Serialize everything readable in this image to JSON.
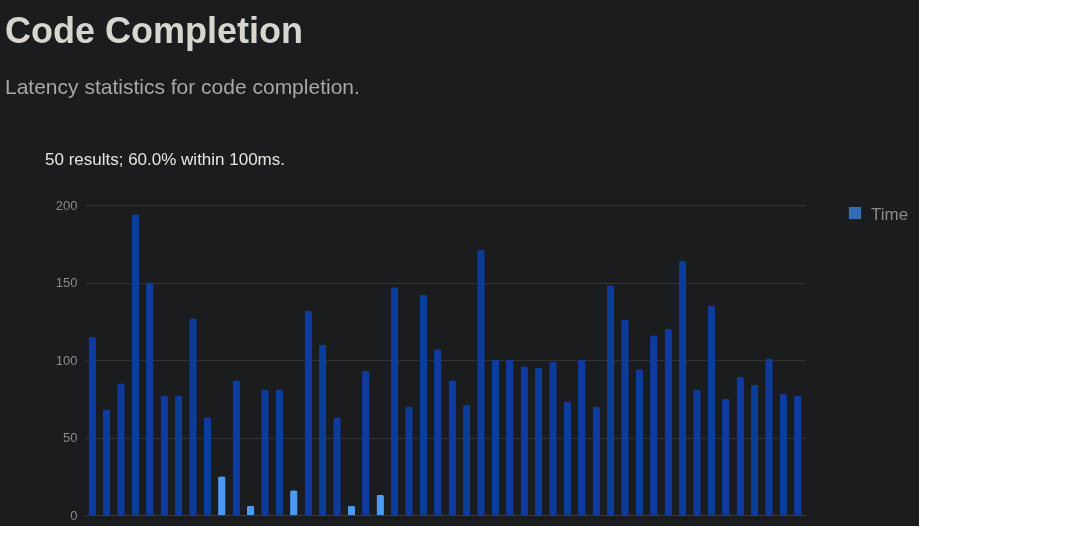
{
  "chart_data": {
    "type": "bar",
    "title": "Code Completion",
    "subtitle": "Latency statistics for code completion.",
    "annotations": [
      "50 results; 60.0% within 100ms."
    ],
    "categories": [
      null,
      null,
      null,
      null,
      null,
      null,
      null,
      null,
      null,
      null,
      null,
      null,
      null,
      null,
      null,
      null,
      null,
      null,
      null,
      null,
      null,
      null,
      null,
      null,
      null,
      null,
      null,
      null,
      null,
      null,
      null,
      null,
      null,
      null,
      null,
      null,
      null,
      null,
      null,
      null,
      null,
      null,
      null,
      null,
      null,
      null,
      null,
      null,
      null,
      null
    ],
    "series": [
      {
        "name": "Time",
        "color": "#3d8ff0",
        "values": [
          115,
          68,
          85,
          194,
          150,
          77,
          77,
          127,
          63,
          25,
          87,
          6,
          81,
          81,
          16,
          132,
          110,
          63,
          6,
          93,
          13,
          147,
          70,
          142,
          107,
          87,
          71,
          171,
          100,
          100,
          96,
          95,
          99,
          73,
          100,
          70,
          148,
          126,
          94,
          116,
          120,
          164,
          81,
          135,
          75,
          89,
          84,
          101,
          78,
          77
        ],
        "colors": [
          "#0d3b9e",
          "#0d3b9e",
          "#0d3b9e",
          "#0d3b9e",
          "#0d3b9e",
          "#0d3b9e",
          "#0d3b9e",
          "#0d3b9e",
          "#0d3b9e",
          "#4a9af2",
          "#0d3b9e",
          "#4a9af2",
          "#0d3b9e",
          "#0d3b9e",
          "#4a9af2",
          "#0d3b9e",
          "#0d3b9e",
          "#0d3b9e",
          "#4a9af2",
          "#0d3b9e",
          "#4a9af2",
          "#0d3b9e",
          "#0d3b9e",
          "#0d3b9e",
          "#0d3b9e",
          "#0d3b9e",
          "#0d3b9e",
          "#0d3b9e",
          "#0d3b9e",
          "#0d3b9e",
          "#0d3b9e",
          "#0d3b9e",
          "#0d3b9e",
          "#0d3b9e",
          "#0d3b9e",
          "#0d3b9e",
          "#0d3b9e",
          "#0d3b9e",
          "#0d3b9e",
          "#0d3b9e",
          "#0d3b9e",
          "#0d3b9e",
          "#0d3b9e",
          "#0d3b9e",
          "#0d3b9e",
          "#0d3b9e",
          "#0d3b9e",
          "#0d3b9e",
          "#0d3b9e",
          "#0d3b9e"
        ]
      }
    ],
    "ylim": [
      0,
      200
    ],
    "yticks": [
      0,
      50,
      100,
      150,
      200
    ],
    "grid": "y",
    "legend": "top right"
  }
}
